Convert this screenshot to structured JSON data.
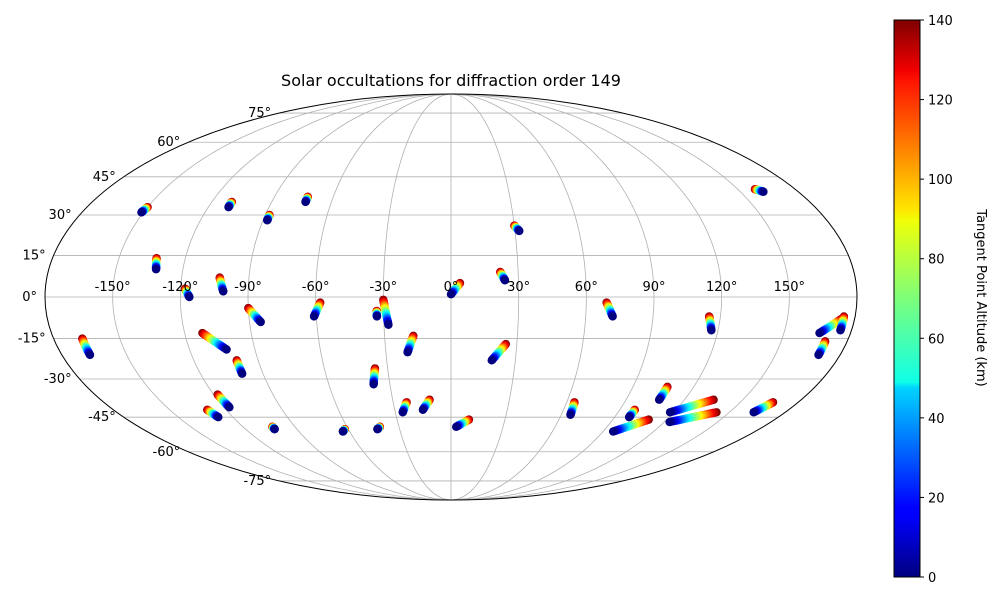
{
  "chart_data": {
    "type": "scatter",
    "projection": "mollweide",
    "title": "Solar occultations for diffraction order 149",
    "longitude_tick_labels": [
      "-150°",
      "-120°",
      "-90°",
      "-60°",
      "-30°",
      "0°",
      "30°",
      "60°",
      "90°",
      "120°",
      "150°"
    ],
    "latitude_tick_labels": [
      "75°",
      "60°",
      "45°",
      "30°",
      "15°",
      "0°",
      "-15°",
      "-30°",
      "-45°",
      "-60°",
      "-75°"
    ],
    "grid": true,
    "colorbar": {
      "label": "Tangent Point Altitude (km)",
      "colormap": "jet",
      "range": [
        0,
        140
      ],
      "tick_labels": [
        "0",
        "20",
        "40",
        "60",
        "80",
        "100",
        "120",
        "140"
      ]
    },
    "altitude_range_km": [
      0,
      140
    ],
    "tracks": [
      {
        "start_lon": -150,
        "start_lat": 33,
        "end_lon": -151,
        "end_lat": 31
      },
      {
        "start_lon": -110,
        "start_lat": 35,
        "end_lon": -110,
        "end_lat": 33
      },
      {
        "start_lon": -88,
        "start_lat": 30,
        "end_lon": -88,
        "end_lat": 28
      },
      {
        "start_lon": -73,
        "start_lat": 37,
        "end_lon": -73,
        "end_lat": 35
      },
      {
        "start_lon": -133,
        "start_lat": 14,
        "end_lon": -132,
        "end_lat": 10
      },
      {
        "start_lon": -118,
        "start_lat": 3,
        "end_lon": -116,
        "end_lat": 0
      },
      {
        "start_lon": -103,
        "start_lat": 7,
        "end_lon": -101,
        "end_lat": 2
      },
      {
        "start_lon": -90,
        "start_lat": -4,
        "end_lon": -85,
        "end_lat": -9
      },
      {
        "start_lon": -58,
        "start_lat": -2,
        "end_lon": -61,
        "end_lat": -7
      },
      {
        "start_lon": -30,
        "start_lat": -1,
        "end_lon": -28,
        "end_lat": -10
      },
      {
        "start_lon": -33,
        "start_lat": -5,
        "end_lon": -33,
        "end_lat": -7
      },
      {
        "start_lon": 4,
        "start_lat": 5,
        "end_lon": 0,
        "end_lat": 1
      },
      {
        "start_lon": -167,
        "start_lat": -15,
        "end_lon": -167,
        "end_lat": -21
      },
      {
        "start_lon": -112,
        "start_lat": -13,
        "end_lon": -103,
        "end_lat": -19
      },
      {
        "start_lon": -100,
        "start_lat": -23,
        "end_lon": -100,
        "end_lat": -28
      },
      {
        "start_lon": -17,
        "start_lat": -14,
        "end_lon": -20,
        "end_lat": -20
      },
      {
        "start_lon": 25,
        "start_lat": -17,
        "end_lon": 19,
        "end_lat": -23
      },
      {
        "start_lon": 22,
        "start_lat": 9,
        "end_lon": 24,
        "end_lat": 6
      },
      {
        "start_lon": 30,
        "start_lat": 26,
        "end_lon": 32,
        "end_lat": 24
      },
      {
        "start_lon": 69,
        "start_lat": -2,
        "end_lon": 72,
        "end_lat": -7
      },
      {
        "start_lon": 115,
        "start_lat": -7,
        "end_lon": 117,
        "end_lat": -12
      },
      {
        "start_lon": 159,
        "start_lat": 40,
        "end_lon": 162,
        "end_lat": 39
      },
      {
        "start_lon": 174,
        "start_lat": -8,
        "end_lon": 166,
        "end_lat": -13
      },
      {
        "start_lon": 170,
        "start_lat": -16,
        "end_lon": 170,
        "end_lat": -21
      },
      {
        "start_lon": 175,
        "start_lat": -7,
        "end_lon": 175,
        "end_lat": -12
      },
      {
        "start_lon": -36,
        "start_lat": -26,
        "end_lon": -38,
        "end_lat": -32
      },
      {
        "start_lon": -118,
        "start_lat": -36,
        "end_lon": -117,
        "end_lat": -41
      },
      {
        "start_lon": -130,
        "start_lat": -42,
        "end_lon": -128,
        "end_lat": -45
      },
      {
        "start_lon": -23,
        "start_lat": -39,
        "end_lon": -26,
        "end_lat": -43
      },
      {
        "start_lon": -11,
        "start_lat": -38,
        "end_lon": -15,
        "end_lat": -42
      },
      {
        "start_lon": 64,
        "start_lat": -39,
        "end_lon": 65,
        "end_lat": -44
      },
      {
        "start_lon": 107,
        "start_lat": -33,
        "end_lon": 107,
        "end_lat": -38
      },
      {
        "start_lon": 98,
        "start_lat": -42,
        "end_lon": 98,
        "end_lat": -45
      },
      {
        "start_lon": 135,
        "start_lat": -38,
        "end_lon": 118,
        "end_lat": -43
      },
      {
        "start_lon": 143,
        "start_lat": -43,
        "end_lon": 123,
        "end_lat": -47
      },
      {
        "start_lon": 167,
        "start_lat": -39,
        "end_lon": 163,
        "end_lat": -43
      },
      {
        "start_lon": 10,
        "start_lat": -46,
        "end_lon": 3,
        "end_lat": -49
      },
      {
        "start_lon": 110,
        "start_lat": -46,
        "end_lon": 96,
        "end_lat": -51
      },
      {
        "start_lon": -103,
        "start_lat": -49,
        "end_lon": -103,
        "end_lat": -50
      },
      {
        "start_lon": -62,
        "start_lat": -50,
        "end_lon": -64,
        "end_lat": -51
      },
      {
        "start_lon": -41,
        "start_lat": -49,
        "end_lon": -43,
        "end_lat": -50
      }
    ]
  }
}
